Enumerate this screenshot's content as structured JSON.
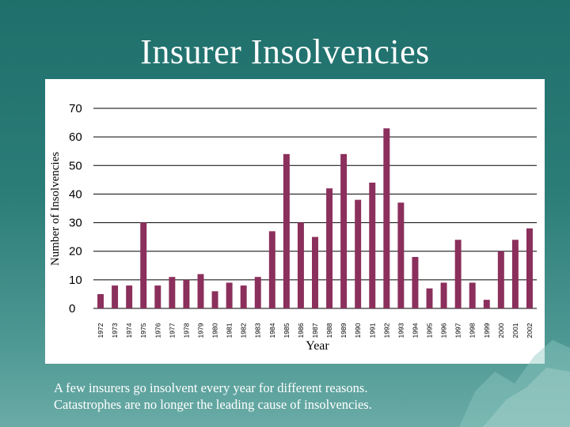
{
  "slide": {
    "title": "Insurer Insolvencies",
    "caption_line1": "A few insurers go insolvent every year for different reasons.",
    "caption_line2": "Catastrophes are no longer the leading cause of insolvencies."
  },
  "colors": {
    "background": "#2b7d78",
    "bar": "#8b2f5c",
    "grid": "#000000"
  },
  "chart_data": {
    "type": "bar",
    "title": "",
    "xlabel": "Year",
    "ylabel": "Number of Insolvencies",
    "ylim": [
      0,
      70
    ],
    "yticks": [
      0,
      10,
      20,
      30,
      40,
      50,
      60,
      70
    ],
    "grid": true,
    "categories": [
      "1972",
      "1973",
      "1974",
      "1975",
      "1976",
      "1977",
      "1978",
      "1979",
      "1980",
      "1981",
      "1982",
      "1983",
      "1984",
      "1985",
      "1986",
      "1987",
      "1988",
      "1989",
      "1990",
      "1991",
      "1992",
      "1993",
      "1994",
      "1995",
      "1996",
      "1997",
      "1998",
      "1999",
      "2000",
      "2001",
      "2002"
    ],
    "values": [
      5,
      8,
      8,
      30,
      8,
      11,
      10,
      12,
      6,
      9,
      8,
      11,
      27,
      54,
      30,
      25,
      42,
      54,
      38,
      44,
      63,
      37,
      18,
      7,
      9,
      24,
      9,
      3,
      20,
      24,
      28
    ]
  }
}
